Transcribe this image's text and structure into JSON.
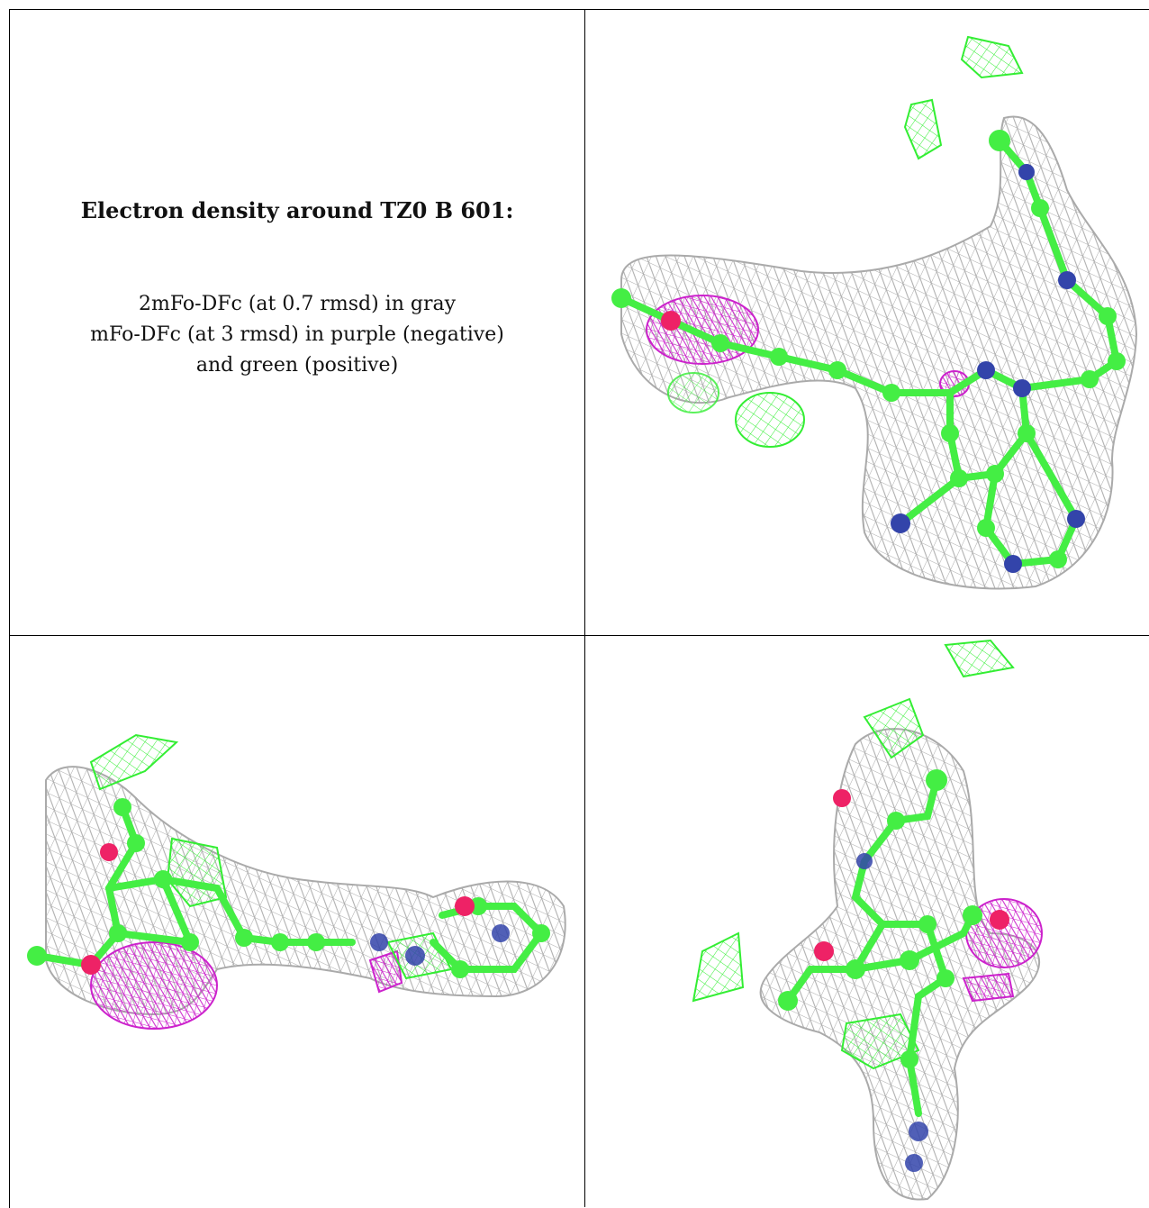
{
  "caption": {
    "title": "Electron density around TZ0 B 601:",
    "line1": "2mFo-DFc (at 0.7 rmsd) in gray",
    "line2": "mFo-DFc (at 3 rmsd) in purple (negative)",
    "line3": "and green (positive)"
  },
  "colors": {
    "density_2fofc": "#a6a6a6",
    "density_negative": "#cc22cc",
    "density_positive": "#33ee33",
    "carbon": "#44ee44",
    "nitrogen": "#3344aa",
    "oxygen": "#ee2266"
  }
}
